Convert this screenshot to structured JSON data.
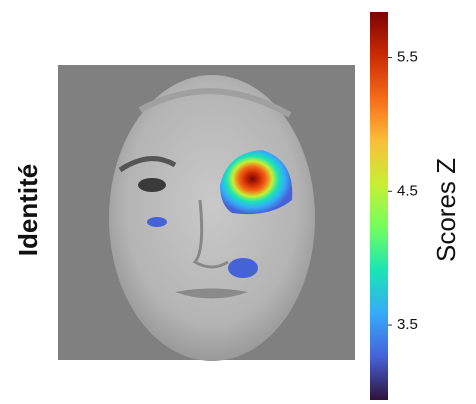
{
  "chart_data": {
    "type": "heatmap",
    "row_label": "Identité",
    "colorbar_label": "Scores Z",
    "ylim": [
      2.94,
      5.84
    ],
    "yticks": [
      3.5,
      4.5,
      5.5
    ],
    "colormap": [
      "#30123b",
      "#4662d7",
      "#36aaf9",
      "#1ae4b6",
      "#72fe5e",
      "#c7ef34",
      "#fabf3a",
      "#f66b19",
      "#cb2a04",
      "#7a0403"
    ]
  }
}
